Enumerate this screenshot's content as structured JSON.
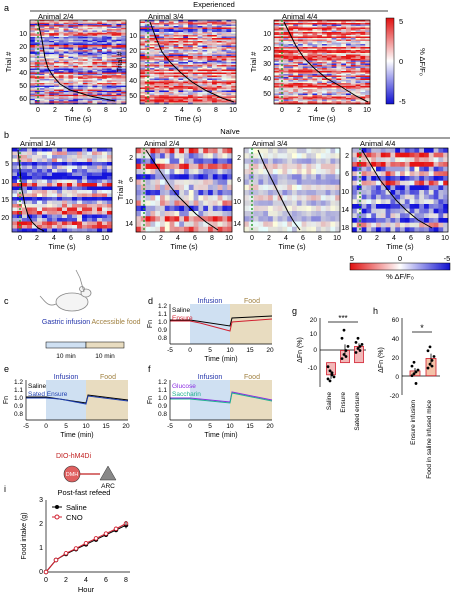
{
  "panel_letters": [
    "a",
    "b",
    "c",
    "d",
    "e",
    "f",
    "g",
    "h",
    "i"
  ],
  "panel_a": {
    "group": "Experienced",
    "heatmaps": [
      {
        "title": "Animal 2/4",
        "yticks": [
          "10",
          "20",
          "30",
          "40",
          "50",
          "60"
        ]
      },
      {
        "title": "Animal 3/4",
        "yticks": [
          "10",
          "20",
          "30",
          "40",
          "50"
        ]
      },
      {
        "title": "Animal 4/4",
        "yticks": [
          "10",
          "20",
          "30",
          "40",
          "50"
        ]
      }
    ],
    "ylabel": "Trial #",
    "xlabel": "Time (s)",
    "xticks": [
      "0",
      "2",
      "4",
      "6",
      "8",
      "10"
    ],
    "colorbar": {
      "ticks": [
        "5",
        "0",
        "-5"
      ],
      "label": "% ΔF/F₀"
    }
  },
  "panel_b": {
    "group": "Naïve",
    "heatmaps": [
      {
        "title": "Animal 1/4",
        "yticks": [
          "5",
          "10",
          "15",
          "20"
        ]
      },
      {
        "title": "Animal 2/4",
        "yticks": [
          "2",
          "6",
          "10",
          "14"
        ]
      },
      {
        "title": "Animal 3/4",
        "yticks": [
          "2",
          "6",
          "10",
          "14"
        ]
      },
      {
        "title": "Animal 4/4",
        "yticks": [
          "2",
          "6",
          "10",
          "14",
          "18"
        ]
      }
    ],
    "ylabel": "Trial #",
    "xlabel": "Time (s)",
    "xticks": [
      "0",
      "2",
      "4",
      "6",
      "8",
      "10"
    ],
    "colorbar": {
      "ticks": [
        "5",
        "0",
        "-5"
      ],
      "label": "% ΔF/F₀"
    }
  },
  "panel_c": {
    "steps": [
      "Gastric infusion",
      "Accessible food"
    ],
    "durations": [
      "10 min",
      "10 min"
    ]
  },
  "traces": {
    "ylabel": "Fn",
    "xlabel": "Time (min)",
    "yticks": [
      "1.2",
      "1.1",
      "1.0",
      "0.9",
      "0.8"
    ],
    "xticks": [
      "-5",
      "0",
      "5",
      "10",
      "15",
      "20"
    ],
    "period_labels": [
      "Infusion",
      "Food"
    ],
    "d_legend": [
      "Saline",
      "Ensure"
    ],
    "e_legend": [
      "Saline",
      "Sated Ensure"
    ],
    "f_legend": [
      "Glucose",
      "Saccharin"
    ]
  },
  "colors": {
    "infusion_shade": "#cfe0f2",
    "food_shade": "#e8dcc0",
    "red": "#d22030",
    "blue": "#2040b0",
    "black": "#000000",
    "purple": "#8a2be2",
    "teal": "#20b090"
  },
  "chart_data": [
    {
      "type": "bar",
      "panel": "g",
      "categories": [
        "Saline",
        "Ensure",
        "Sated ensure"
      ],
      "values": [
        -6,
        6,
        8
      ],
      "errors": [
        2,
        3,
        1.5
      ],
      "points": [
        [
          -2,
          -4,
          -6,
          -7,
          -8,
          -9,
          -5
        ],
        [
          2,
          4,
          6,
          8,
          12,
          16,
          3
        ],
        [
          5,
          7,
          8,
          9,
          10,
          12,
          6
        ]
      ],
      "ylabel": "ΔFn (%)",
      "yticks": [
        "20",
        "10",
        "0",
        "-10"
      ],
      "ylim": [
        -12,
        22
      ],
      "significance": "***"
    },
    {
      "type": "bar",
      "panel": "h",
      "categories": [
        "Ensure infusion",
        "Food in saline infused mice"
      ],
      "values": [
        5,
        18
      ],
      "errors": [
        3,
        5
      ],
      "points": [
        [
          0,
          2,
          4,
          6,
          10,
          14,
          -8
        ],
        [
          8,
          12,
          16,
          20,
          26,
          30,
          10
        ]
      ],
      "ylabel": "ΔFn (%)",
      "yticks": [
        "60",
        "40",
        "20",
        "0",
        "-20"
      ],
      "ylim": [
        -20,
        60
      ],
      "significance": "*"
    },
    {
      "type": "line",
      "panel": "i",
      "x": [
        0,
        1,
        2,
        3,
        4,
        5,
        6,
        7,
        8
      ],
      "series": [
        {
          "name": "Saline",
          "values": [
            0,
            0.5,
            0.75,
            0.95,
            1.15,
            1.35,
            1.55,
            1.75,
            1.95
          ]
        },
        {
          "name": "CNO",
          "values": [
            0,
            0.5,
            0.78,
            0.98,
            1.2,
            1.4,
            1.6,
            1.8,
            2.02
          ]
        }
      ],
      "ylabel": "Food intake (g)",
      "xlabel": "Hour",
      "yticks": [
        "0",
        "1",
        "2",
        "3"
      ],
      "xticks": [
        "0",
        "2",
        "4",
        "6",
        "8"
      ],
      "ylim": [
        0,
        3
      ],
      "xlim": [
        0,
        8
      ]
    }
  ],
  "panel_i_diagram": {
    "construct": "DIO-hM4Di",
    "region1": "DMH",
    "region2": "ARC",
    "condition": "Post-fast refeed"
  }
}
